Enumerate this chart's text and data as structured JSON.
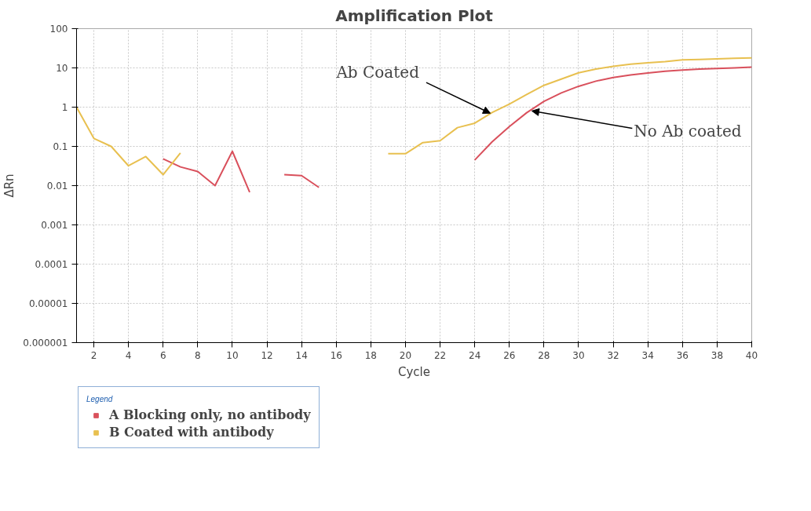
{
  "chart_data": {
    "type": "line",
    "title": "Amplification Plot",
    "xlabel": "Cycle",
    "ylabel": "ΔRn",
    "legend_title": "Legend",
    "x": [
      1,
      2,
      3,
      4,
      5,
      6,
      7,
      8,
      9,
      10,
      11,
      12,
      13,
      14,
      15,
      16,
      17,
      18,
      19,
      20,
      21,
      22,
      23,
      24,
      25,
      26,
      27,
      28,
      29,
      30,
      31,
      32,
      33,
      34,
      35,
      36,
      37,
      38,
      39,
      40
    ],
    "series": [
      {
        "name": "A Blocking only, no antibody",
        "color": "#d9505c",
        "values": [
          null,
          null,
          null,
          null,
          null,
          0.048,
          0.03,
          0.023,
          0.01,
          0.075,
          0.0068,
          null,
          0.019,
          0.018,
          0.009,
          null,
          null,
          null,
          null,
          null,
          null,
          null,
          null,
          0.045,
          0.13,
          0.32,
          0.72,
          1.4,
          2.3,
          3.4,
          4.6,
          5.7,
          6.6,
          7.4,
          8.2,
          8.8,
          9.3,
          9.7,
          10,
          10.5
        ]
      },
      {
        "name": "B Coated with antibody",
        "color": "#e8c050",
        "values": [
          1,
          0.16,
          0.1,
          0.032,
          0.055,
          0.019,
          0.068,
          null,
          null,
          null,
          null,
          null,
          null,
          null,
          null,
          null,
          null,
          null,
          0.065,
          0.065,
          0.125,
          0.14,
          0.3,
          0.39,
          0.73,
          1.2,
          2.1,
          3.6,
          5.2,
          7.5,
          9.3,
          11,
          12.5,
          13.5,
          14.5,
          16,
          16.5,
          17,
          17.5,
          18
        ]
      }
    ],
    "annotations": [
      {
        "text": "Ab Coated",
        "x": 24.9,
        "y": 0.7
      },
      {
        "text": "No Ab coated",
        "x": 27.3,
        "y": 0.8
      }
    ],
    "log": "y",
    "xlim": [
      1,
      40
    ],
    "ylim": [
      1e-06,
      100
    ],
    "xticks": [
      2,
      4,
      6,
      8,
      10,
      12,
      14,
      16,
      18,
      20,
      22,
      24,
      26,
      28,
      30,
      32,
      34,
      36,
      38,
      40
    ],
    "yticks": [
      {
        "value": 1e-06,
        "label": "0.000001"
      },
      {
        "value": 1e-05,
        "label": "0.00001"
      },
      {
        "value": 0.0001,
        "label": "0.0001"
      },
      {
        "value": 0.001,
        "label": "0.001"
      },
      {
        "value": 0.01,
        "label": "0.01"
      },
      {
        "value": 0.1,
        "label": "0.1"
      },
      {
        "value": 1,
        "label": "1"
      },
      {
        "value": 10,
        "label": "10"
      },
      {
        "value": 100,
        "label": "100"
      }
    ],
    "grid": true,
    "legend": "bottom",
    "marker": "none",
    "line_style": "solid"
  }
}
